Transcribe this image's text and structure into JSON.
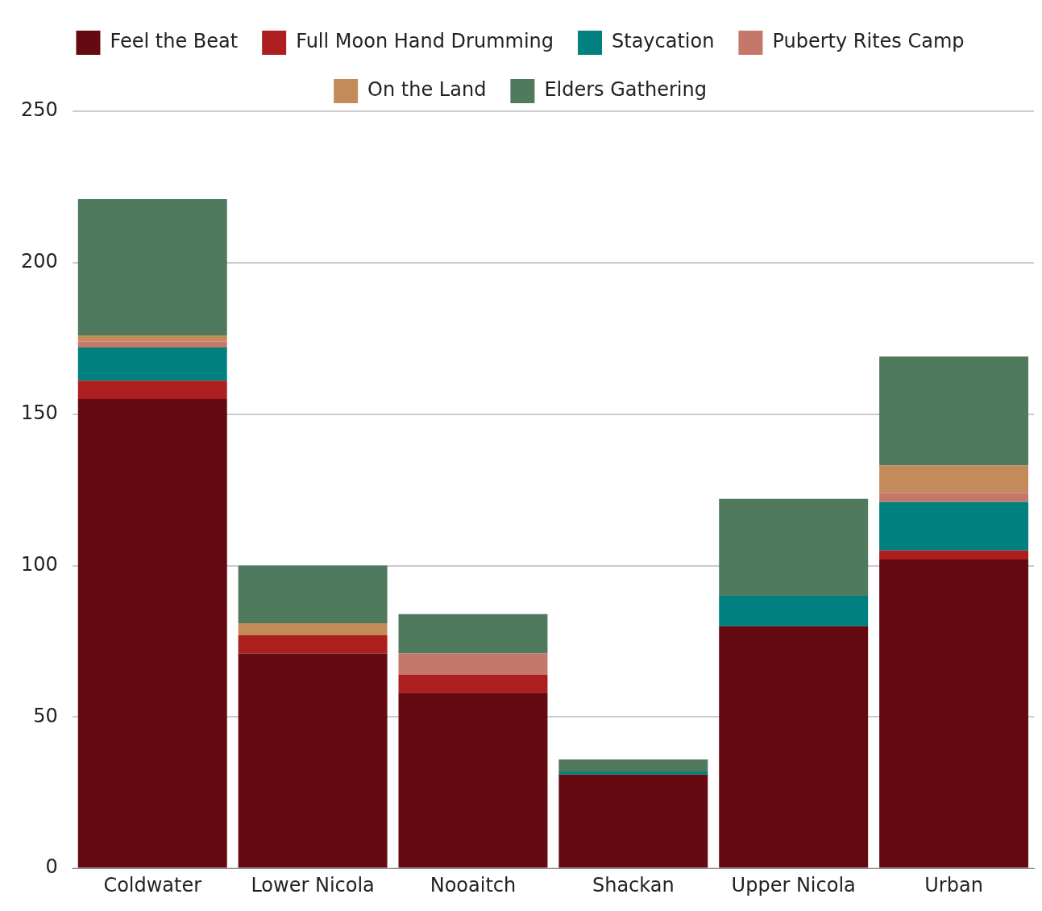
{
  "chart_data": {
    "type": "bar",
    "stacked": true,
    "categories": [
      "Coldwater",
      "Lower Nicola",
      "Nooaitch",
      "Shackan",
      "Upper Nicola",
      "Urban"
    ],
    "series": [
      {
        "name": "Feel the Beat",
        "color": "#650a10",
        "values": [
          155,
          71,
          58,
          31,
          80,
          102
        ]
      },
      {
        "name": "Full Moon Hand Drumming",
        "color": "#ad1f1f",
        "values": [
          6,
          6,
          6,
          0,
          0,
          3
        ]
      },
      {
        "name": "Staycation",
        "color": "#00807f",
        "values": [
          11,
          0,
          0,
          1,
          10,
          16
        ]
      },
      {
        "name": "Puberty Rites Camp",
        "color": "#c5776b",
        "values": [
          2,
          0,
          7,
          0,
          0,
          3
        ]
      },
      {
        "name": "On the Land",
        "color": "#c48b5a",
        "values": [
          2,
          4,
          0,
          0,
          0,
          9
        ]
      },
      {
        "name": "Elders Gathering",
        "color": "#507a5e",
        "values": [
          45,
          19,
          13,
          4,
          32,
          36
        ]
      }
    ],
    "ylim": [
      0,
      250
    ],
    "yticks": [
      0,
      50,
      100,
      150,
      200,
      250
    ],
    "grid": "y",
    "legend": "top"
  }
}
